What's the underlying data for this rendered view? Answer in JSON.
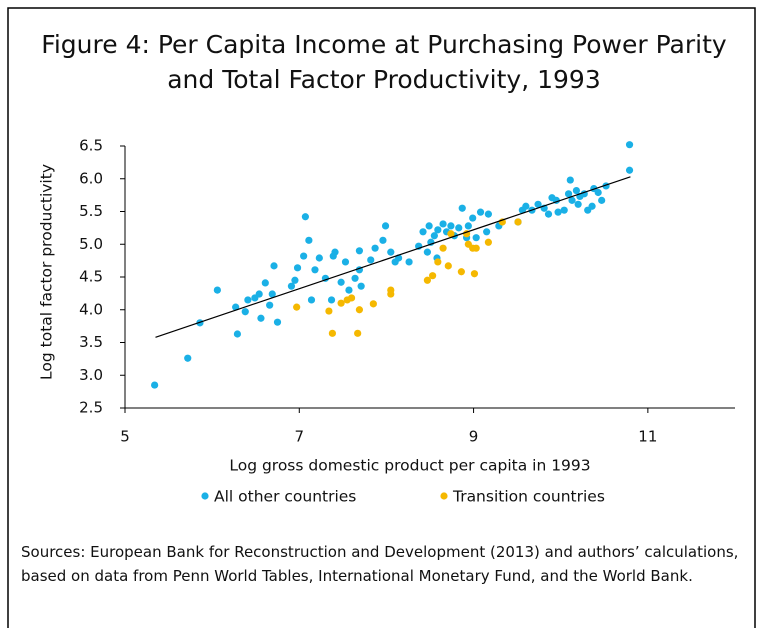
{
  "chart_data": {
    "type": "scatter",
    "title": [
      "Figure 4: Per Capita Income at Purchasing Power Parity",
      "and Total Factor Productivity, 1993"
    ],
    "x_label": "Log gross domestic product per capita in 1993",
    "y_label": "Log total factor productivity",
    "xlim": [
      5,
      12
    ],
    "xticks": [
      5,
      7,
      9,
      11
    ],
    "ylim": [
      2.5,
      6.5
    ],
    "yticks": [
      2.5,
      {
        "value": 3,
        "label": "3.0"
      },
      3.5,
      {
        "value": 4,
        "label": "4.0"
      },
      4.5,
      {
        "value": 5,
        "label": "5.0"
      },
      5.5,
      {
        "value": 6,
        "label": "6.0"
      },
      6.5
    ],
    "trendline": {
      "x": [
        5.35,
        10.8
      ],
      "y": [
        3.58,
        6.03
      ]
    },
    "legend": "bottom",
    "series": [
      {
        "name": "All other countries",
        "color": "#1ab0e6",
        "x": [
          5.34,
          5.72,
          5.86,
          6.06,
          6.27,
          6.29,
          6.38,
          6.41,
          6.49,
          6.54,
          6.56,
          6.61,
          6.66,
          6.69,
          6.71,
          6.75,
          6.91,
          6.95,
          6.98,
          7.05,
          7.07,
          7.11,
          7.14,
          7.18,
          7.23,
          7.3,
          7.37,
          7.39,
          7.41,
          7.48,
          7.53,
          7.57,
          7.64,
          7.69,
          7.69,
          7.71,
          7.82,
          7.87,
          7.96,
          7.99,
          8.05,
          8.1,
          8.14,
          8.26,
          8.37,
          8.42,
          8.47,
          8.49,
          8.51,
          8.55,
          8.58,
          8.59,
          8.65,
          8.69,
          8.74,
          8.78,
          8.83,
          8.87,
          8.92,
          8.94,
          8.99,
          9.03,
          9.08,
          9.15,
          9.17,
          9.29,
          9.51,
          9.56,
          9.6,
          9.67,
          9.74,
          9.81,
          9.86,
          9.9,
          9.95,
          9.97,
          10.04,
          10.09,
          10.11,
          10.13,
          10.18,
          10.2,
          10.22,
          10.27,
          10.31,
          10.36,
          10.38,
          10.43,
          10.47,
          10.52,
          10.79,
          10.79
        ],
        "values": [
          2.85,
          3.26,
          3.8,
          4.3,
          4.04,
          3.63,
          3.97,
          4.15,
          4.18,
          4.24,
          3.87,
          4.41,
          4.07,
          4.24,
          4.67,
          3.81,
          4.36,
          4.45,
          4.64,
          4.82,
          5.42,
          5.06,
          4.15,
          4.61,
          4.79,
          4.48,
          4.15,
          4.82,
          4.88,
          4.42,
          4.73,
          4.3,
          4.48,
          4.61,
          4.9,
          4.36,
          4.76,
          4.94,
          5.06,
          5.28,
          4.88,
          4.73,
          4.79,
          4.73,
          4.97,
          5.19,
          4.88,
          5.28,
          5.03,
          5.13,
          4.79,
          5.22,
          5.31,
          5.19,
          5.28,
          5.13,
          5.25,
          5.55,
          5.1,
          5.28,
          5.4,
          5.1,
          5.49,
          5.19,
          5.46,
          5.28,
          5.34,
          5.52,
          5.58,
          5.52,
          5.61,
          5.55,
          5.46,
          5.71,
          5.67,
          5.49,
          5.52,
          5.77,
          5.98,
          5.67,
          5.82,
          5.61,
          5.73,
          5.77,
          5.52,
          5.58,
          5.85,
          5.79,
          5.67,
          5.89,
          6.13,
          6.52
        ]
      },
      {
        "name": "Transition countries",
        "color": "#f5b800",
        "x": [
          6.97,
          7.34,
          7.38,
          7.48,
          7.55,
          7.6,
          7.67,
          7.69,
          7.85,
          8.05,
          8.05,
          8.47,
          8.53,
          8.59,
          8.65,
          8.71,
          8.74,
          8.86,
          8.92,
          8.94,
          8.99,
          9.01,
          9.03,
          9.17,
          9.33,
          9.51
        ],
        "values": [
          4.04,
          3.98,
          3.64,
          4.1,
          4.15,
          4.18,
          3.64,
          4.0,
          4.09,
          4.3,
          4.24,
          4.45,
          4.52,
          4.73,
          4.94,
          4.67,
          5.16,
          4.58,
          5.16,
          5.0,
          4.94,
          4.55,
          4.94,
          5.03,
          5.34,
          5.34
        ]
      }
    ],
    "source": "Sources: European Bank for Reconstruction and Development (2013) and authors’ calculations, based on data from Penn World Tables, International Monetary Fund, and the World Bank."
  }
}
